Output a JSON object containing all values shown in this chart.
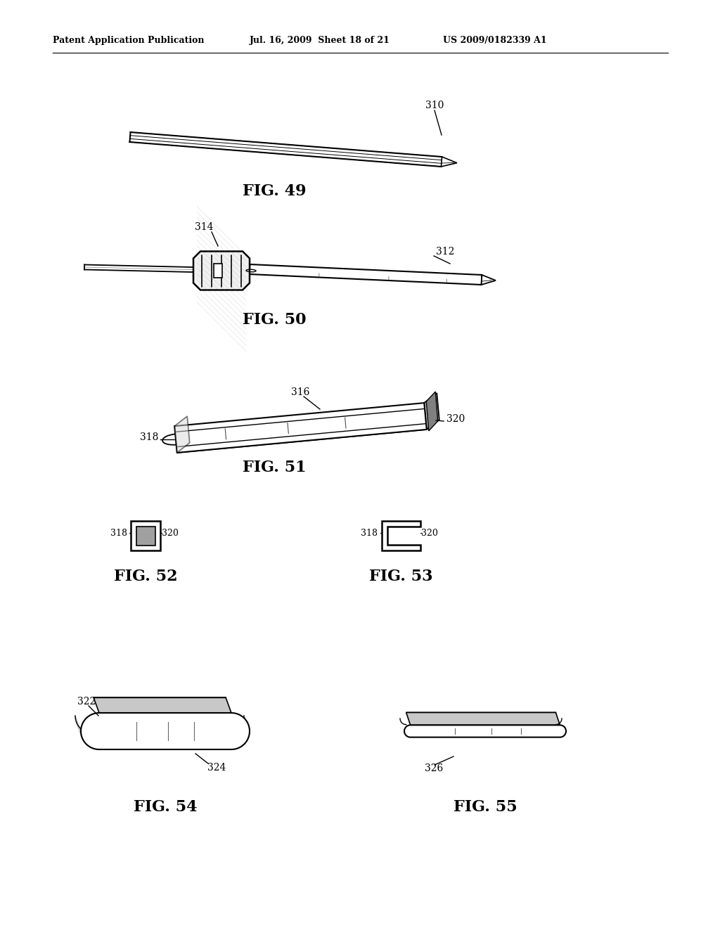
{
  "bg_color": "#ffffff",
  "header_left": "Patent Application Publication",
  "header_center": "Jul. 16, 2009  Sheet 18 of 21",
  "header_right": "US 2009/0182339 A1",
  "line_color": "#000000"
}
